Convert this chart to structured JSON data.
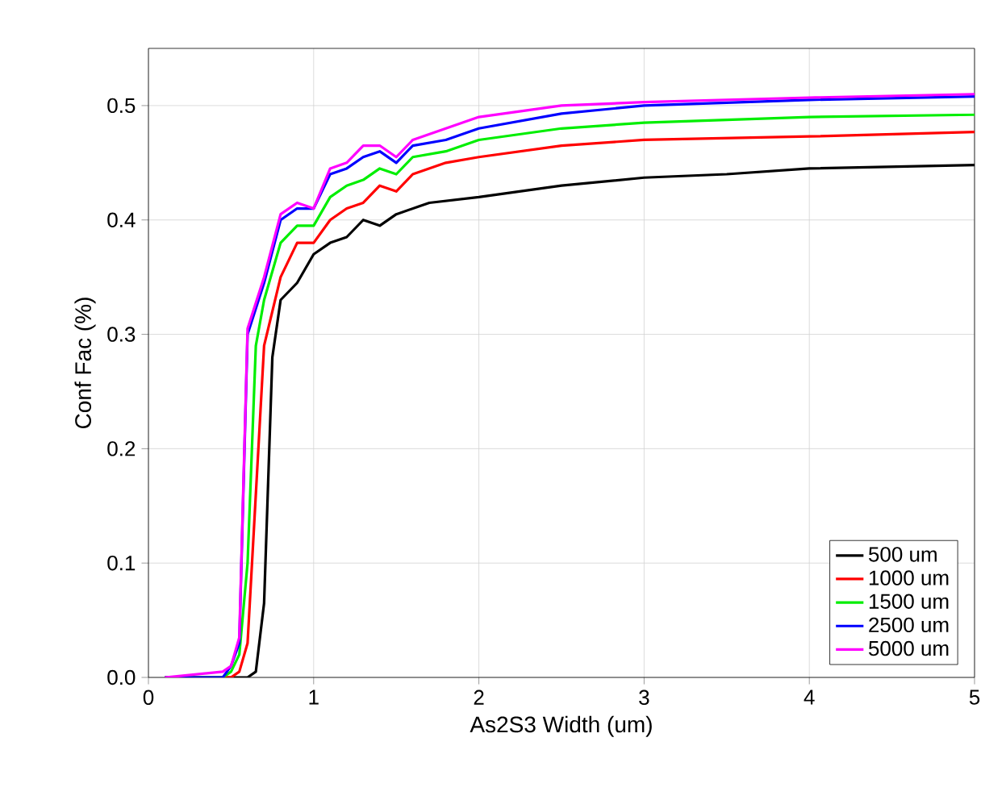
{
  "chart_data": {
    "type": "line",
    "xlabel": "As2S3 Width (um)",
    "ylabel": "Conf Fac (%)",
    "xlim": [
      0,
      5
    ],
    "ylim": [
      0,
      0.55
    ],
    "xticks": [
      0,
      1,
      2,
      3,
      4,
      5
    ],
    "yticks": [
      {
        "value": 0,
        "label": "0.0"
      },
      0.1,
      0.2,
      0.3,
      0.4,
      0.5
    ],
    "grid": true,
    "legend": "bottom right",
    "marker": "none",
    "line_style": "solid",
    "series": [
      {
        "name": "500 um",
        "color": "#000000",
        "x": [
          0.1,
          0.6,
          0.65,
          0.7,
          0.75,
          0.8,
          0.9,
          1.0,
          1.1,
          1.2,
          1.3,
          1.4,
          1.5,
          1.7,
          2.0,
          2.5,
          3.0,
          3.5,
          4.0,
          5.0
        ],
        "values": [
          0,
          0,
          0.005,
          0.065,
          0.28,
          0.33,
          0.345,
          0.37,
          0.38,
          0.385,
          0.4,
          0.395,
          0.405,
          0.415,
          0.42,
          0.43,
          0.437,
          0.44,
          0.445,
          0.448
        ]
      },
      {
        "name": "1000 um",
        "color": "#ff0000",
        "x": [
          0.1,
          0.5,
          0.55,
          0.6,
          0.7,
          0.8,
          0.9,
          1.0,
          1.1,
          1.2,
          1.3,
          1.4,
          1.5,
          1.6,
          1.8,
          2.0,
          2.5,
          3.0,
          4.0,
          5.0
        ],
        "values": [
          0,
          0,
          0.005,
          0.03,
          0.29,
          0.35,
          0.38,
          0.38,
          0.4,
          0.41,
          0.415,
          0.43,
          0.425,
          0.44,
          0.45,
          0.455,
          0.465,
          0.47,
          0.473,
          0.477
        ]
      },
      {
        "name": "1500 um",
        "color": "#00ee00",
        "x": [
          0.1,
          0.45,
          0.5,
          0.55,
          0.6,
          0.65,
          0.7,
          0.8,
          0.9,
          1.0,
          1.1,
          1.2,
          1.3,
          1.4,
          1.5,
          1.6,
          1.8,
          2.0,
          2.5,
          3.0,
          4.0,
          5.0
        ],
        "values": [
          0,
          0,
          0.005,
          0.02,
          0.1,
          0.29,
          0.33,
          0.38,
          0.395,
          0.395,
          0.42,
          0.43,
          0.435,
          0.445,
          0.44,
          0.455,
          0.46,
          0.47,
          0.48,
          0.485,
          0.49,
          0.492
        ]
      },
      {
        "name": "2500 um",
        "color": "#0000ff",
        "x": [
          0.1,
          0.45,
          0.5,
          0.55,
          0.6,
          0.7,
          0.8,
          0.9,
          1.0,
          1.1,
          1.2,
          1.3,
          1.4,
          1.5,
          1.6,
          1.8,
          2.0,
          2.5,
          3.0,
          4.0,
          5.0
        ],
        "values": [
          0,
          0,
          0.01,
          0.03,
          0.3,
          0.345,
          0.4,
          0.41,
          0.41,
          0.44,
          0.445,
          0.455,
          0.46,
          0.45,
          0.465,
          0.47,
          0.48,
          0.493,
          0.5,
          0.505,
          0.508
        ]
      },
      {
        "name": "5000 um",
        "color": "#ff00ff",
        "x": [
          0.1,
          0.45,
          0.5,
          0.55,
          0.6,
          0.7,
          0.8,
          0.9,
          1.0,
          1.1,
          1.2,
          1.3,
          1.4,
          1.5,
          1.6,
          1.8,
          2.0,
          2.5,
          3.0,
          4.0,
          5.0
        ],
        "values": [
          0,
          0.005,
          0.01,
          0.035,
          0.305,
          0.35,
          0.405,
          0.415,
          0.41,
          0.445,
          0.45,
          0.465,
          0.465,
          0.455,
          0.47,
          0.48,
          0.49,
          0.5,
          0.503,
          0.507,
          0.51
        ]
      }
    ]
  }
}
